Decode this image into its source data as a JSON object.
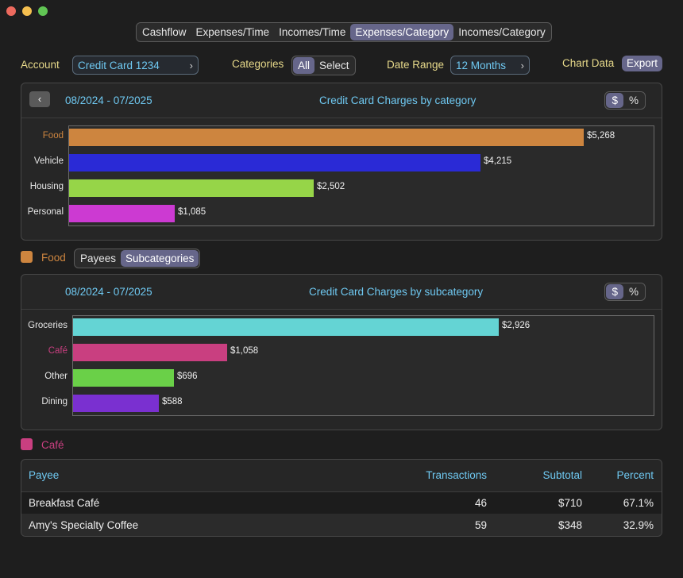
{
  "colors": {
    "food": "#cd853f",
    "vehicle": "#2a2ad6",
    "housing": "#96d548",
    "personal": "#cc3ad2",
    "groceries": "#64d4d4",
    "cafe": "#c93f80",
    "other": "#6ad048",
    "dining": "#7a30d0"
  },
  "tabs": [
    "Cashflow",
    "Expenses/Time",
    "Incomes/Time",
    "Expenses/Category",
    "Incomes/Category"
  ],
  "filters": {
    "account_label": "Account",
    "account_value": "Credit Card 1234",
    "categories_label": "Categories",
    "categories_options": [
      "All",
      "Select"
    ],
    "date_range_label": "Date Range",
    "date_range_value": "12 Months",
    "chart_data_label": "Chart Data",
    "export_label": "Export"
  },
  "units": [
    "$",
    "%"
  ],
  "selected_category": "Food",
  "sub_toggle": [
    "Payees",
    "Subcategories"
  ],
  "selected_subcategory": "Café",
  "chart_data": [
    {
      "type": "bar",
      "orientation": "horizontal",
      "title": "Credit Card Charges by category",
      "date_range": "08/2024 - 07/2025",
      "categories": [
        "Food",
        "Vehicle",
        "Housing",
        "Personal"
      ],
      "values": [
        5268,
        4215,
        2502,
        1085
      ],
      "value_labels": [
        "$5,268",
        "$4,215",
        "$2,502",
        "$1,085"
      ],
      "colors": [
        "#cd853f",
        "#2a2ad6",
        "#96d548",
        "#cc3ad2"
      ],
      "highlight": "Food"
    },
    {
      "type": "bar",
      "orientation": "horizontal",
      "title": "Credit Card Charges by subcategory",
      "date_range": "08/2024 - 07/2025",
      "categories": [
        "Groceries",
        "Café",
        "Other",
        "Dining"
      ],
      "values": [
        2926,
        1058,
        696,
        588
      ],
      "value_labels": [
        "$2,926",
        "$1,058",
        "$696",
        "$588"
      ],
      "colors": [
        "#64d4d4",
        "#c93f80",
        "#6ad048",
        "#7a30d0"
      ],
      "highlight": "Café"
    }
  ],
  "table": {
    "columns": [
      "Payee",
      "Transactions",
      "Subtotal",
      "Percent"
    ],
    "rows": [
      [
        "Breakfast Café",
        "46",
        "$710",
        "67.1%"
      ],
      [
        "Amy's Specialty Coffee",
        "59",
        "$348",
        "32.9%"
      ]
    ]
  }
}
